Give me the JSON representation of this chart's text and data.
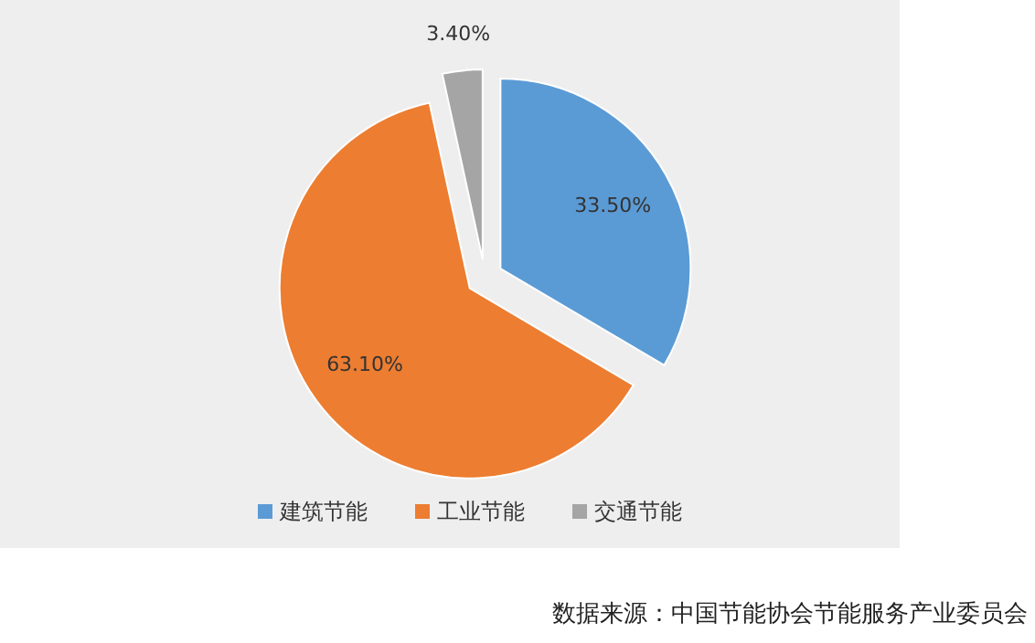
{
  "chart_data": {
    "type": "pie",
    "categories": [
      "建筑节能",
      "工业节能",
      "交通节能"
    ],
    "values": [
      33.5,
      63.1,
      3.4
    ],
    "colors": [
      "#5b9bd5",
      "#ed7d31",
      "#a5a5a5"
    ],
    "value_labels": [
      "33.50%",
      "63.10%",
      "3.40%"
    ],
    "legend": "bottom",
    "annotations": [
      "数据来源：中国节能协会节能服务产业委员会"
    ]
  }
}
